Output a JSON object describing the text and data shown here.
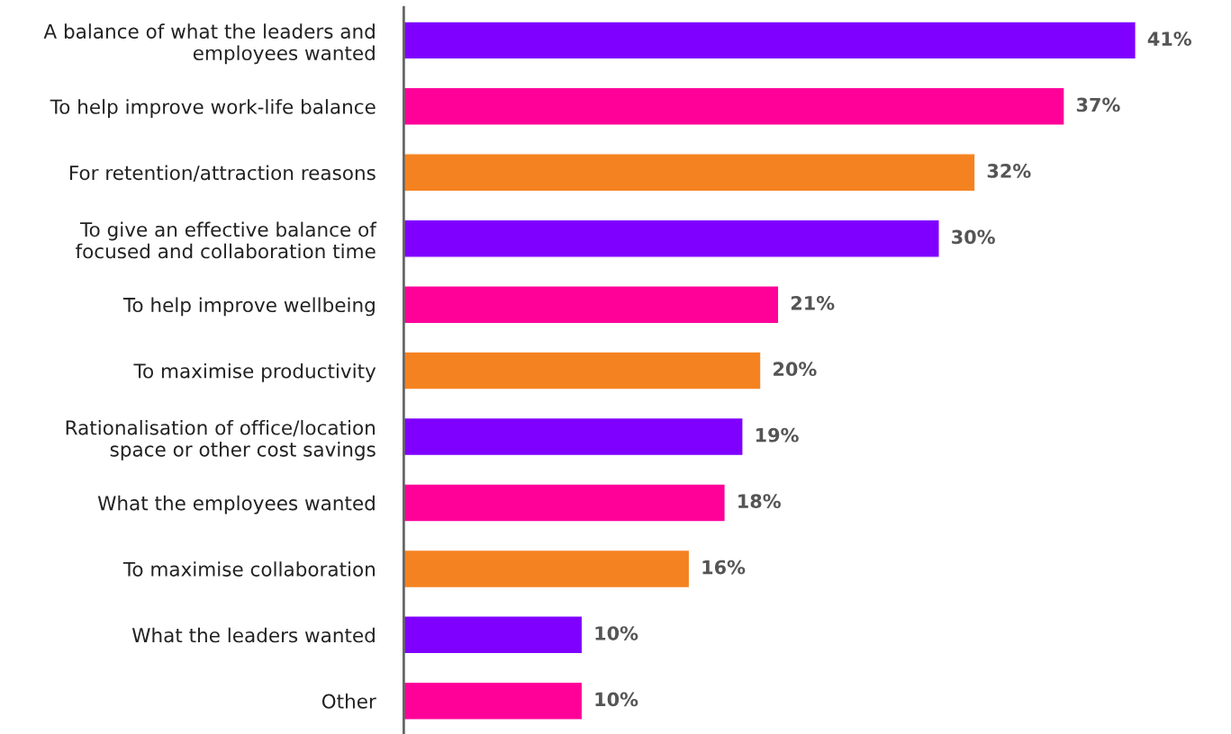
{
  "chart_data": {
    "type": "bar",
    "orientation": "horizontal",
    "data_labels": true,
    "categories": [
      "A balance of what the leaders and\nemployees wanted",
      "To help improve work-life balance",
      "For retention/attraction reasons",
      "To give an effective balance of\nfocused and collaboration time",
      "To help improve wellbeing",
      "To maximise productivity",
      "Rationalisation of office/location\nspace or other cost savings",
      "What the employees wanted",
      "To maximise collaboration",
      "What the leaders wanted",
      "Other"
    ],
    "values": [
      41,
      37,
      32,
      30,
      21,
      20,
      19,
      18,
      16,
      10,
      10
    ],
    "value_labels": [
      "41%",
      "37%",
      "32%",
      "30%",
      "21%",
      "20%",
      "19%",
      "18%",
      "16%",
      "10%",
      "10%"
    ],
    "colors": [
      "#7f00ff",
      "#ff0099",
      "#f58220",
      "#7f00ff",
      "#ff0099",
      "#f58220",
      "#7f00ff",
      "#ff0099",
      "#f58220",
      "#7f00ff",
      "#ff0099"
    ],
    "grid": false,
    "legend": false,
    "tick_labels": "y"
  }
}
